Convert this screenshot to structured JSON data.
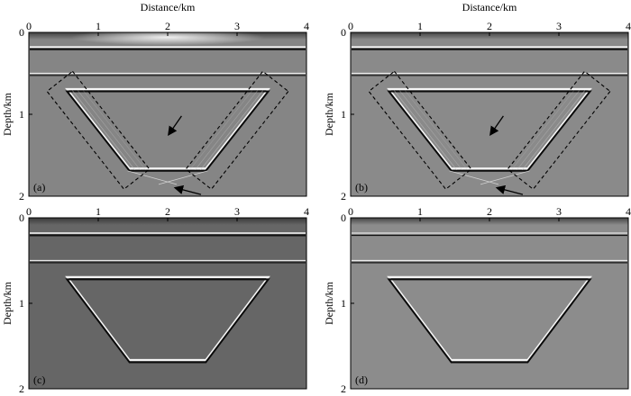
{
  "figure": {
    "x_axis_label": "Distance/km",
    "y_axis_label": "Depth/km",
    "x_ticks": [
      "0",
      "1",
      "2",
      "3",
      "4"
    ],
    "y_ticks": [
      "0",
      "1",
      "2"
    ],
    "x_range_km": [
      0,
      4
    ],
    "y_range_km": [
      0,
      2
    ],
    "colormap": "grayscale seismic image",
    "panels": [
      {
        "label": "(a)",
        "background": "#858585",
        "layer_depths_km": [
          0.2,
          0.52
        ],
        "trapezoid": {
          "top_depth_km": 0.71,
          "top_x_km": [
            0.55,
            3.45
          ],
          "bottom_depth_km": 1.68,
          "bottom_x_km": [
            1.45,
            2.55
          ]
        },
        "dashed_boxes": 2,
        "arrows": 2,
        "artifacts": true
      },
      {
        "label": "(b)",
        "background": "#8a8a8a",
        "layer_depths_km": [
          0.2,
          0.52
        ],
        "trapezoid": {
          "top_depth_km": 0.71,
          "top_x_km": [
            0.55,
            3.45
          ],
          "bottom_depth_km": 1.68,
          "bottom_x_km": [
            1.45,
            2.55
          ]
        },
        "dashed_boxes": 2,
        "arrows": 2,
        "artifacts": true
      },
      {
        "label": "(c)",
        "background": "#666666",
        "layer_depths_km": [
          0.2,
          0.52
        ],
        "trapezoid": {
          "top_depth_km": 0.71,
          "top_x_km": [
            0.55,
            3.45
          ],
          "bottom_depth_km": 1.68,
          "bottom_x_km": [
            1.45,
            2.55
          ]
        },
        "dashed_boxes": 0,
        "arrows": 0,
        "artifacts": false
      },
      {
        "label": "(d)",
        "background": "#8c8c8c",
        "layer_depths_km": [
          0.2,
          0.52
        ],
        "trapezoid": {
          "top_depth_km": 0.71,
          "top_x_km": [
            0.55,
            3.45
          ],
          "bottom_depth_km": 1.68,
          "bottom_x_km": [
            1.45,
            2.55
          ]
        },
        "dashed_boxes": 0,
        "arrows": 0,
        "artifacts": false
      }
    ]
  }
}
